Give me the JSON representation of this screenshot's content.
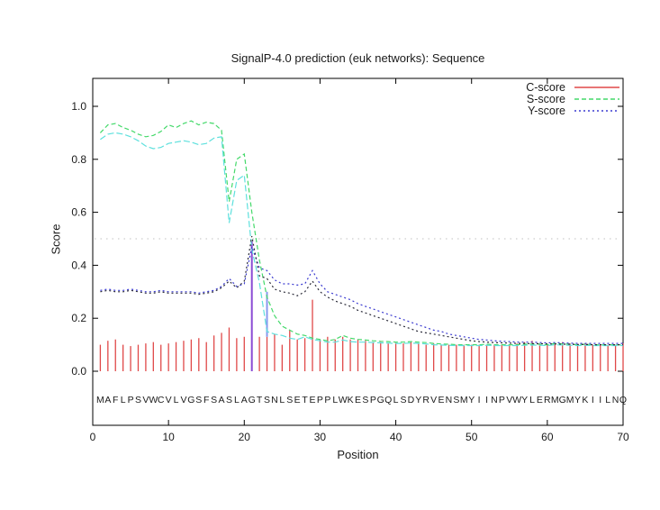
{
  "title": "SignalP-4.0 prediction (euk networks): Sequence",
  "axes": {
    "xlabel": "Position",
    "ylabel": "Score",
    "xtick_labels": [
      "0",
      "10",
      "20",
      "30",
      "40",
      "50",
      "60",
      "70"
    ],
    "xtick_values": [
      0,
      10,
      20,
      30,
      40,
      50,
      60,
      70
    ],
    "ytick_labels": [
      "0.0",
      "0.2",
      "0.4",
      "0.6",
      "0.8",
      "1.0"
    ],
    "ytick_values": [
      0.0,
      0.2,
      0.4,
      0.6,
      0.8,
      1.0
    ]
  },
  "legend": [
    {
      "label": "C-score",
      "color": "#e04848",
      "dash": ""
    },
    {
      "label": "S-score",
      "color": "#44d96a",
      "dash": "5,3"
    },
    {
      "label": "Y-score",
      "color": "#3b3bd0",
      "dash": "2,3"
    }
  ],
  "sequence": "MAFLPSVWCVLVGSFSASLAGTSNLSETEPPLWKESPGQLSDYRVENSMYIINPVWYLERMGMYKIILNQ",
  "colors": {
    "c_score": "#e04848",
    "c_score_peak": "#8a4bd4",
    "s_score": "#44d96a",
    "s_score_alt": "#5ee0dd",
    "y_score": "#3b3bd0",
    "y_score_alt": "#2a2a38",
    "threshold": "#c0c0c0",
    "extra_segment": "#8899ee",
    "axis": "#000000",
    "text": "#1a1a1a"
  },
  "chart_data": {
    "type": "line",
    "title": "SignalP-4.0 prediction (euk networks): Sequence",
    "xlabel": "Position",
    "ylabel": "Score",
    "xlim": [
      0,
      70
    ],
    "ylim": [
      -0.2,
      1.1
    ],
    "grid": false,
    "legend_position": "top-right-inside",
    "threshold_line": 0.5,
    "x": [
      1,
      2,
      3,
      4,
      5,
      6,
      7,
      8,
      9,
      10,
      11,
      12,
      13,
      14,
      15,
      16,
      17,
      18,
      19,
      20,
      21,
      22,
      23,
      24,
      25,
      26,
      27,
      28,
      29,
      30,
      31,
      32,
      33,
      34,
      35,
      36,
      37,
      38,
      39,
      40,
      41,
      42,
      43,
      44,
      45,
      46,
      47,
      48,
      49,
      50,
      51,
      52,
      53,
      54,
      55,
      56,
      57,
      58,
      59,
      60,
      61,
      62,
      63,
      64,
      65,
      66,
      67,
      68,
      69,
      70
    ],
    "series": [
      {
        "name": "C-score",
        "type": "impulse",
        "color": "#e04848",
        "values": [
          0.1,
          0.115,
          0.12,
          0.1,
          0.095,
          0.1,
          0.105,
          0.11,
          0.1,
          0.105,
          0.11,
          0.115,
          0.12,
          0.125,
          0.11,
          0.135,
          0.145,
          0.165,
          0.125,
          0.13,
          0.49,
          0.13,
          0.13,
          0.14,
          0.1,
          0.155,
          0.12,
          0.125,
          0.27,
          0.12,
          0.13,
          0.12,
          0.13,
          0.12,
          0.12,
          0.115,
          0.11,
          0.11,
          0.105,
          0.11,
          0.105,
          0.11,
          0.105,
          0.1,
          0.105,
          0.1,
          0.1,
          0.1,
          0.1,
          0.1,
          0.1,
          0.1,
          0.1,
          0.1,
          0.1,
          0.105,
          0.11,
          0.115,
          0.105,
          0.1,
          0.105,
          0.11,
          0.105,
          0.1,
          0.105,
          0.1,
          0.1,
          0.1,
          0.1,
          0.105
        ]
      },
      {
        "name": "S-score",
        "type": "line",
        "color": "#44d96a",
        "dash": "5,3",
        "values": [
          0.9,
          0.93,
          0.935,
          0.92,
          0.91,
          0.895,
          0.885,
          0.89,
          0.905,
          0.93,
          0.92,
          0.935,
          0.945,
          0.93,
          0.94,
          0.935,
          0.91,
          0.64,
          0.8,
          0.82,
          0.6,
          0.42,
          0.28,
          0.21,
          0.17,
          0.155,
          0.14,
          0.135,
          0.125,
          0.12,
          0.115,
          0.12,
          0.135,
          0.125,
          0.12,
          0.118,
          0.115,
          0.113,
          0.112,
          0.11,
          0.11,
          0.112,
          0.11,
          0.108,
          0.105,
          0.103,
          0.102,
          0.1,
          0.1,
          0.1,
          0.1,
          0.102,
          0.1,
          0.1,
          0.1,
          0.1,
          0.102,
          0.103,
          0.102,
          0.1,
          0.105,
          0.103,
          0.102,
          0.1,
          0.102,
          0.1,
          0.1,
          0.1,
          0.1,
          0.1
        ]
      },
      {
        "name": "S-score-secondary",
        "type": "line",
        "color": "#5ee0dd",
        "dash": "7,3",
        "values": [
          0.875,
          0.895,
          0.9,
          0.895,
          0.885,
          0.87,
          0.85,
          0.84,
          0.845,
          0.86,
          0.865,
          0.87,
          0.865,
          0.855,
          0.86,
          0.88,
          0.885,
          0.56,
          0.72,
          0.74,
          0.46,
          0.335,
          0.15,
          0.14,
          0.135,
          0.125,
          0.12,
          0.13,
          0.12,
          0.115,
          0.11,
          0.11,
          0.118,
          0.112,
          0.11,
          0.11,
          0.108,
          0.107,
          0.106,
          0.105,
          0.105,
          0.106,
          0.105,
          0.103,
          0.1,
          0.099,
          0.098,
          0.097,
          0.097,
          0.097,
          0.097,
          0.098,
          0.097,
          0.097,
          0.097,
          0.097,
          0.098,
          0.099,
          0.098,
          0.097,
          0.1,
          0.099,
          0.098,
          0.097,
          0.098,
          0.097,
          0.097,
          0.097,
          0.097,
          0.097
        ]
      },
      {
        "name": "Y-score",
        "type": "line",
        "color": "#3b3bd0",
        "dash": "2,3",
        "values": [
          0.305,
          0.31,
          0.305,
          0.305,
          0.31,
          0.305,
          0.3,
          0.3,
          0.305,
          0.3,
          0.3,
          0.3,
          0.3,
          0.295,
          0.3,
          0.305,
          0.32,
          0.35,
          0.32,
          0.33,
          0.47,
          0.39,
          0.38,
          0.345,
          0.33,
          0.33,
          0.325,
          0.33,
          0.38,
          0.33,
          0.3,
          0.29,
          0.28,
          0.27,
          0.255,
          0.245,
          0.235,
          0.225,
          0.215,
          0.205,
          0.195,
          0.185,
          0.175,
          0.165,
          0.155,
          0.15,
          0.14,
          0.135,
          0.13,
          0.125,
          0.12,
          0.118,
          0.115,
          0.113,
          0.112,
          0.11,
          0.11,
          0.11,
          0.108,
          0.107,
          0.108,
          0.107,
          0.106,
          0.105,
          0.105,
          0.105,
          0.105,
          0.105,
          0.105,
          0.105
        ]
      },
      {
        "name": "Y-score-secondary",
        "type": "line",
        "color": "#2a2a38",
        "dash": "2,3",
        "values": [
          0.3,
          0.305,
          0.3,
          0.3,
          0.305,
          0.3,
          0.295,
          0.295,
          0.3,
          0.295,
          0.295,
          0.295,
          0.295,
          0.29,
          0.295,
          0.3,
          0.315,
          0.34,
          0.315,
          0.34,
          0.51,
          0.36,
          0.35,
          0.31,
          0.3,
          0.295,
          0.285,
          0.3,
          0.34,
          0.3,
          0.28,
          0.265,
          0.255,
          0.245,
          0.23,
          0.22,
          0.21,
          0.2,
          0.19,
          0.18,
          0.17,
          0.16,
          0.15,
          0.145,
          0.14,
          0.135,
          0.13,
          0.125,
          0.12,
          0.115,
          0.112,
          0.11,
          0.108,
          0.107,
          0.106,
          0.105,
          0.105,
          0.104,
          0.104,
          0.103,
          0.103,
          0.102,
          0.102,
          0.101,
          0.101,
          0.1,
          0.1,
          0.1,
          0.1,
          0.1
        ]
      }
    ],
    "impulse_overrides": {
      "21": {
        "value": 0.49,
        "color": "#8a4bd4"
      }
    },
    "extra_segments": [
      {
        "x": 23,
        "y1": 0.13,
        "y2": 0.3,
        "color": "#8899ee"
      }
    ]
  }
}
